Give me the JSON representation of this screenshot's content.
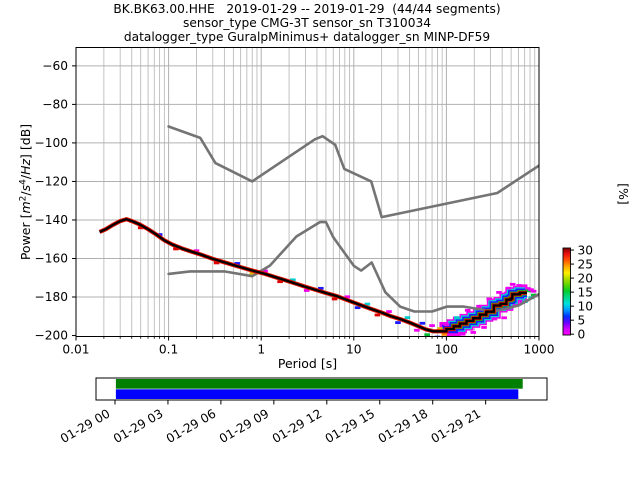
{
  "title": {
    "line1": "BK.BK63.00.HHE   2019-01-29 -- 2019-01-29  (44/44 segments)",
    "line2": "sensor_type CMG-3T sensor_sn T310034",
    "line3": "datalogger_type GuralpMinimus+ datalogger_sn MINP-DF59"
  },
  "chart_data": {
    "type": "line",
    "xlabel": "Period [s]",
    "ylabel": "Power [m^2/s^4/Hz] [dB]",
    "ylabel_rich": [
      {
        "t": "Power ["
      },
      {
        "t": "m",
        "it": true
      },
      {
        "t": "2",
        "sup": true
      },
      {
        "t": "/"
      },
      {
        "t": "s",
        "it": true
      },
      {
        "t": "4",
        "sup": true
      },
      {
        "t": "/"
      },
      {
        "t": "Hz",
        "it": true
      },
      {
        "t": "] [dB]"
      }
    ],
    "right_label": "[%]",
    "xscale": "log",
    "xlim": [
      0.01,
      1000
    ],
    "ylim": [
      -200.5,
      -50.5
    ],
    "grid": true,
    "xticks": [
      {
        "v": 0.01,
        "label": "0.01"
      },
      {
        "v": 0.1,
        "label": "0.1"
      },
      {
        "v": 1,
        "label": "1"
      },
      {
        "v": 10,
        "label": "10"
      },
      {
        "v": 100,
        "label": "100"
      },
      {
        "v": 1000,
        "label": "1000"
      }
    ],
    "yticks": [
      {
        "v": -200,
        "label": "−200"
      },
      {
        "v": -180,
        "label": "−180"
      },
      {
        "v": -160,
        "label": "−160"
      },
      {
        "v": -140,
        "label": "−140"
      },
      {
        "v": -120,
        "label": "−120"
      },
      {
        "v": -100,
        "label": "−100"
      },
      {
        "v": -80,
        "label": "−80"
      },
      {
        "v": -60,
        "label": "−60"
      }
    ],
    "series": [
      {
        "name": "noise_model_high_NHNM",
        "color": "#747474",
        "width": 2.6,
        "points": [
          [
            0.1,
            -91.5
          ],
          [
            0.22,
            -97.4
          ],
          [
            0.32,
            -110.5
          ],
          [
            0.8,
            -120.0
          ],
          [
            3.8,
            -98.1
          ],
          [
            4.6,
            -96.5
          ],
          [
            6.3,
            -101.0
          ],
          [
            7.9,
            -113.5
          ],
          [
            15.4,
            -120.0
          ],
          [
            20.0,
            -138.5
          ],
          [
            354.8,
            -126.0
          ],
          [
            1000,
            -111.8
          ]
        ]
      },
      {
        "name": "noise_model_low_NLNM",
        "color": "#747474",
        "width": 2.6,
        "points": [
          [
            0.1,
            -168.0
          ],
          [
            0.17,
            -166.7
          ],
          [
            0.4,
            -166.7
          ],
          [
            0.8,
            -169.2
          ],
          [
            1.24,
            -163.7
          ],
          [
            2.4,
            -148.6
          ],
          [
            4.3,
            -141.1
          ],
          [
            5.0,
            -141.1
          ],
          [
            6.0,
            -149.0
          ],
          [
            10.0,
            -163.8
          ],
          [
            12.0,
            -166.3
          ],
          [
            15.6,
            -162.1
          ],
          [
            21.9,
            -177.5
          ],
          [
            31.6,
            -185.0
          ],
          [
            45.0,
            -187.5
          ],
          [
            70.0,
            -187.5
          ],
          [
            101.0,
            -185.0
          ],
          [
            154.0,
            -185.0
          ],
          [
            328.0,
            -187.5
          ],
          [
            600.0,
            -184.4
          ],
          [
            1000,
            -178.5
          ]
        ]
      },
      {
        "name": "ppsd_mode",
        "color": "#000000",
        "width": 2.3,
        "points": [
          [
            0.018,
            -146.2
          ],
          [
            0.021,
            -144.8
          ],
          [
            0.025,
            -142.6
          ],
          [
            0.03,
            -140.6
          ],
          [
            0.035,
            -139.6
          ],
          [
            0.04,
            -140.6
          ],
          [
            0.048,
            -142.2
          ],
          [
            0.06,
            -144.8
          ],
          [
            0.075,
            -147.8
          ],
          [
            0.09,
            -150.6
          ],
          [
            0.11,
            -152.8
          ],
          [
            0.14,
            -154.8
          ],
          [
            0.18,
            -156.6
          ],
          [
            0.23,
            -158.2
          ],
          [
            0.3,
            -160.2
          ],
          [
            0.4,
            -162.0
          ],
          [
            0.5,
            -163.4
          ],
          [
            0.65,
            -165.0
          ],
          [
            0.85,
            -166.6
          ],
          [
            1.1,
            -168.0
          ],
          [
            1.4,
            -169.6
          ],
          [
            1.8,
            -171.2
          ],
          [
            2.3,
            -172.9
          ],
          [
            3.0,
            -174.7
          ],
          [
            4.0,
            -176.5
          ],
          [
            5.0,
            -177.9
          ],
          [
            6.5,
            -179.5
          ],
          [
            8.0,
            -181.1
          ],
          [
            10,
            -182.9
          ],
          [
            13,
            -184.9
          ],
          [
            16,
            -186.5
          ],
          [
            20,
            -188.1
          ],
          [
            25,
            -189.9
          ],
          [
            32,
            -191.5
          ],
          [
            40,
            -193.3
          ],
          [
            50,
            -195.2
          ],
          [
            60,
            -196.8
          ],
          [
            72,
            -197.8
          ],
          [
            100,
            -197.8
          ],
          [
            100,
            -196.6
          ],
          [
            120,
            -196.6
          ],
          [
            120,
            -195.2
          ],
          [
            140,
            -195.2
          ],
          [
            140,
            -193.8
          ],
          [
            165,
            -193.8
          ],
          [
            165,
            -192.4
          ],
          [
            195,
            -192.4
          ],
          [
            195,
            -191.0
          ],
          [
            230,
            -191.0
          ],
          [
            230,
            -189.2
          ],
          [
            270,
            -189.2
          ],
          [
            270,
            -187.6
          ],
          [
            325,
            -187.6
          ],
          [
            325,
            -184.4
          ],
          [
            385,
            -184.4
          ],
          [
            385,
            -183.6
          ],
          [
            445,
            -183.6
          ],
          [
            445,
            -181.4
          ],
          [
            495,
            -181.4
          ],
          [
            495,
            -180.8
          ],
          [
            515,
            -180.8
          ],
          [
            515,
            -178.6
          ],
          [
            620,
            -178.6
          ],
          [
            620,
            -177.8
          ],
          [
            740,
            -177.8
          ]
        ]
      }
    ],
    "histogram_fringe": {
      "inner": {
        "color": "#dd1100",
        "width": 4.2
      },
      "layers": [
        {
          "color": "#ee00ee",
          "width": 14.0,
          "tmin": 90
        },
        {
          "color": "#00d5d5",
          "width": 11.0,
          "tmin": 110
        },
        {
          "color": "#1a1aff",
          "width": 8.5,
          "tmin": 98
        },
        {
          "color": "#00cc22",
          "width": 5.5,
          "tmin": 118
        }
      ],
      "dash_colors": [
        "#dd0000",
        "#ee00ee",
        "#1a1aff",
        "#00cccc",
        "#00bb33",
        "#ddbb00",
        "#ff8800"
      ],
      "dashes": [
        [
          0.05,
          -1.4,
          0
        ],
        [
          0.08,
          1.2,
          2
        ],
        [
          0.12,
          -1.5,
          0
        ],
        [
          0.2,
          1.3,
          1
        ],
        [
          0.33,
          -1.5,
          0
        ],
        [
          0.55,
          1.4,
          2
        ],
        [
          0.8,
          -1.6,
          5
        ],
        [
          1.1,
          1.5,
          1
        ],
        [
          1.6,
          -1.6,
          0
        ],
        [
          2.2,
          1.5,
          3
        ],
        [
          3.1,
          -1.7,
          1
        ],
        [
          4.4,
          1.6,
          2
        ],
        [
          6.2,
          -1.8,
          0
        ],
        [
          8.5,
          1.7,
          1
        ],
        [
          11,
          -1.9,
          2
        ],
        [
          14,
          1.8,
          3
        ],
        [
          18,
          -2.0,
          0
        ],
        [
          24,
          2.0,
          1
        ],
        [
          30,
          -2.2,
          2
        ],
        [
          38,
          2.2,
          3
        ],
        [
          48,
          -2.4,
          1
        ],
        [
          55,
          2.4,
          2
        ],
        [
          62,
          -2.6,
          4
        ],
        [
          70,
          2.8,
          1
        ],
        [
          80,
          -3.0,
          2
        ],
        [
          85,
          1.4,
          5
        ],
        [
          95,
          -1.6,
          6
        ],
        [
          100,
          3.5,
          1
        ],
        [
          115,
          -4.5,
          1
        ],
        [
          130,
          4.5,
          3
        ],
        [
          150,
          -5.5,
          1
        ],
        [
          170,
          5.5,
          1
        ],
        [
          195,
          -6.0,
          1
        ],
        [
          225,
          6.2,
          1
        ],
        [
          255,
          -6.6,
          1
        ],
        [
          290,
          6.6,
          1
        ],
        [
          330,
          -7.0,
          1
        ],
        [
          370,
          6.8,
          1
        ],
        [
          420,
          -7.2,
          1
        ],
        [
          470,
          6.0,
          1
        ],
        [
          520,
          5.2,
          1
        ],
        [
          560,
          -5.8,
          1
        ],
        [
          610,
          4.6,
          1
        ],
        [
          660,
          -5.0,
          1
        ],
        [
          700,
          3.6,
          1
        ],
        [
          705,
          -4.6,
          3
        ],
        [
          760,
          2.2,
          1
        ],
        [
          765,
          1.0,
          4
        ],
        [
          820,
          1.6,
          1
        ],
        [
          825,
          -2.6,
          3
        ],
        [
          875,
          0.8,
          1
        ],
        [
          880,
          -1.2,
          4
        ]
      ]
    },
    "colorbar": {
      "label": "[%]",
      "ticks": [
        {
          "v": 0,
          "label": "0"
        },
        {
          "v": 5,
          "label": "5"
        },
        {
          "v": 10,
          "label": "10"
        },
        {
          "v": 15,
          "label": "15"
        },
        {
          "v": 20,
          "label": "20"
        },
        {
          "v": 25,
          "label": "25"
        },
        {
          "v": 30,
          "label": "30"
        }
      ],
      "gradient_bottom_to_top": [
        "#ff00ff",
        "#cc00ff",
        "#6600ff",
        "#0033ff",
        "#0099ff",
        "#00e0e0",
        "#00d98c",
        "#00cc33",
        "#55d400",
        "#aadd00",
        "#ffee00",
        "#ffaa00",
        "#ff5500",
        "#ee1111",
        "#7f0000"
      ]
    },
    "timeline": {
      "green_bar": {
        "color": "#007f00",
        "start_hour": 0.05,
        "end_hour": 23.1
      },
      "blue_bar": {
        "color": "#0000ff",
        "start_hour": 0.05,
        "end_hour": 22.85
      },
      "ticks": [
        {
          "hour": 0,
          "label": "01-29 00"
        },
        {
          "hour": 3,
          "label": "01-29 03"
        },
        {
          "hour": 6,
          "label": "01-29 06"
        },
        {
          "hour": 9,
          "label": "01-29 09"
        },
        {
          "hour": 12,
          "label": "01-29 12"
        },
        {
          "hour": 15,
          "label": "01-29 15"
        },
        {
          "hour": 18,
          "label": "01-29 18"
        },
        {
          "hour": 21,
          "label": "01-29 21"
        }
      ]
    }
  }
}
